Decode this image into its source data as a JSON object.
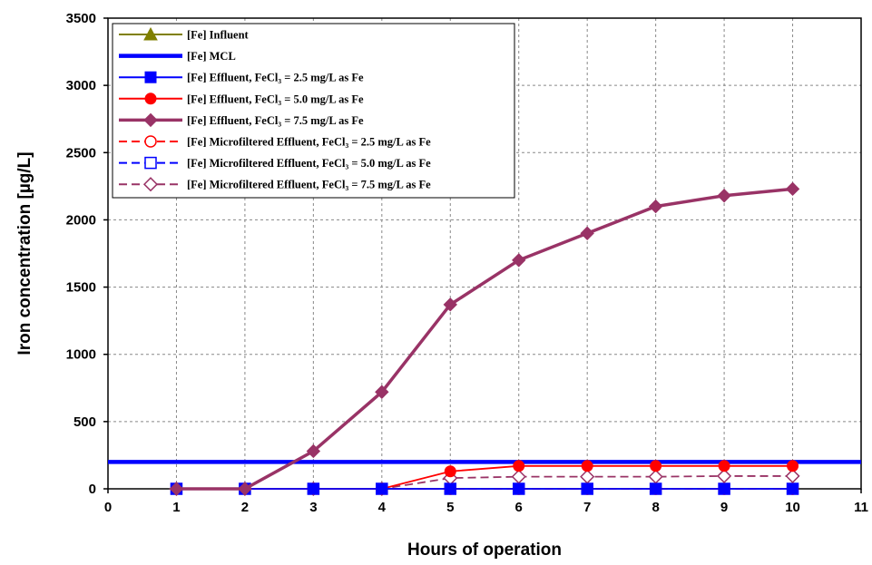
{
  "chart_data": {
    "type": "line",
    "xlabel": "Hours of operation",
    "ylabel": "Iron concentration [µg/L]",
    "xlim": [
      0,
      11
    ],
    "ylim": [
      0,
      3500
    ],
    "xticks": [
      0,
      1,
      2,
      3,
      4,
      5,
      6,
      7,
      8,
      9,
      10,
      11
    ],
    "yticks": [
      0,
      500,
      1000,
      1500,
      2000,
      2500,
      3000,
      3500
    ],
    "grid": true,
    "legend_position": "top-left",
    "series": [
      {
        "name": "[Fe] Influent",
        "color": "#808000",
        "marker": "triangle",
        "dash": "solid",
        "points": []
      },
      {
        "name": "[Fe] MCL",
        "color": "#0000ff",
        "marker": "none",
        "dash": "solid",
        "points": [
          [
            0,
            200
          ],
          [
            11,
            200
          ]
        ]
      },
      {
        "name": "[Fe] Effluent, FeCl₃ = 2.5 mg/L as Fe",
        "color": "#0000ff",
        "marker": "square",
        "dash": "solid",
        "points": [
          [
            1,
            0
          ],
          [
            2,
            0
          ],
          [
            3,
            0
          ],
          [
            4,
            0
          ],
          [
            5,
            0
          ],
          [
            6,
            0
          ],
          [
            7,
            0
          ],
          [
            8,
            0
          ],
          [
            9,
            0
          ],
          [
            10,
            0
          ]
        ]
      },
      {
        "name": "[Fe] Effluent, FeCl₃ = 5.0 mg/L as Fe",
        "color": "#ff0000",
        "marker": "circle",
        "dash": "solid",
        "points": [
          [
            1,
            0
          ],
          [
            2,
            0
          ],
          [
            3,
            0
          ],
          [
            4,
            0
          ],
          [
            5,
            130
          ],
          [
            6,
            170
          ],
          [
            7,
            170
          ],
          [
            8,
            170
          ],
          [
            9,
            170
          ],
          [
            10,
            170
          ]
        ]
      },
      {
        "name": "[Fe] Effluent, FeCl₃ = 7.5 mg/L as Fe",
        "color": "#993366",
        "marker": "diamond",
        "dash": "solid",
        "points": [
          [
            1,
            0
          ],
          [
            2,
            0
          ],
          [
            3,
            280
          ],
          [
            4,
            720
          ],
          [
            5,
            1370
          ],
          [
            6,
            1700
          ],
          [
            7,
            1900
          ],
          [
            8,
            2100
          ],
          [
            9,
            2180
          ],
          [
            10,
            2230
          ]
        ]
      },
      {
        "name": "[Fe] Microfiltered Effluent, FeCl₃ = 2.5 mg/L as Fe",
        "color": "#ff0000",
        "marker": "circle-open",
        "dash": "dashed",
        "points": [
          [
            1,
            0
          ],
          [
            2,
            0
          ],
          [
            3,
            0
          ],
          [
            4,
            0
          ],
          [
            5,
            0
          ],
          [
            6,
            0
          ],
          [
            7,
            0
          ],
          [
            8,
            0
          ],
          [
            9,
            0
          ],
          [
            10,
            0
          ]
        ]
      },
      {
        "name": "[Fe] Microfiltered Effluent, FeCl₃ = 5.0 mg/L as Fe",
        "color": "#0000ff",
        "marker": "square-open",
        "dash": "dashed",
        "points": [
          [
            1,
            0
          ],
          [
            2,
            0
          ],
          [
            3,
            0
          ],
          [
            4,
            0
          ],
          [
            5,
            0
          ],
          [
            6,
            0
          ],
          [
            7,
            0
          ],
          [
            8,
            0
          ],
          [
            9,
            0
          ],
          [
            10,
            0
          ]
        ]
      },
      {
        "name": "[Fe] Microfiltered Effluent, FeCl₃ = 7.5 mg/L as Fe",
        "color": "#993366",
        "marker": "diamond-open",
        "dash": "dashed",
        "points": [
          [
            1,
            0
          ],
          [
            2,
            0
          ],
          [
            3,
            0
          ],
          [
            4,
            0
          ],
          [
            5,
            80
          ],
          [
            6,
            90
          ],
          [
            7,
            90
          ],
          [
            8,
            90
          ],
          [
            9,
            95
          ],
          [
            10,
            95
          ]
        ]
      }
    ]
  }
}
